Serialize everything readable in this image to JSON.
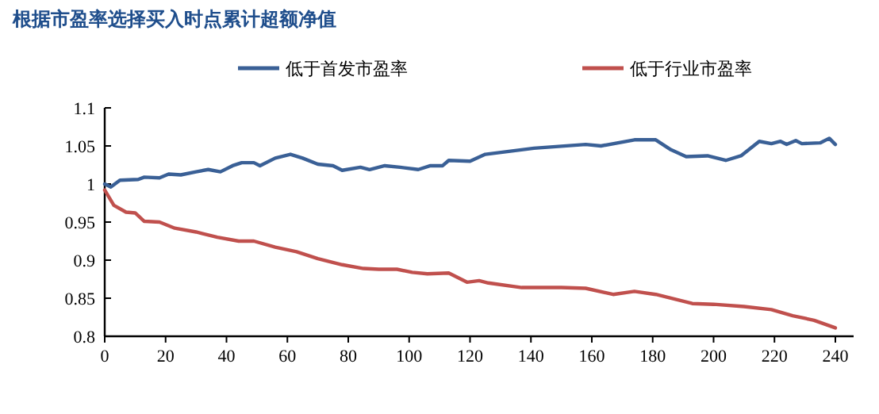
{
  "chart_data": {
    "type": "line",
    "title": "根据市盈率选择买入时点累计超额净值",
    "legend": "top",
    "grid": false,
    "line_style": "solid",
    "xlim": [
      0,
      246
    ],
    "xticks": [
      0,
      20,
      40,
      60,
      80,
      100,
      120,
      140,
      160,
      180,
      200,
      220,
      240
    ],
    "ylim": [
      0.8,
      1.1
    ],
    "yticks": [
      0.8,
      0.85,
      0.9,
      0.95,
      1,
      1.05,
      1.1
    ],
    "series": [
      {
        "name": "低于首发市盈率",
        "color": "#3a6096",
        "x": [
          0,
          2,
          5,
          11,
          13,
          18,
          21,
          25,
          30,
          34,
          38,
          42,
          45,
          49,
          51,
          56,
          61,
          65,
          70,
          75,
          78,
          84,
          87,
          92,
          97,
          103,
          107,
          111,
          113,
          120,
          125,
          141,
          158,
          163,
          174,
          181,
          186,
          191,
          198,
          204,
          209,
          215,
          219,
          222,
          224,
          227,
          229,
          235,
          238,
          240
        ],
        "values": [
          1.0,
          0.996,
          1.005,
          1.006,
          1.009,
          1.008,
          1.013,
          1.012,
          1.016,
          1.019,
          1.016,
          1.024,
          1.028,
          1.028,
          1.024,
          1.034,
          1.039,
          1.034,
          1.026,
          1.024,
          1.018,
          1.022,
          1.019,
          1.024,
          1.022,
          1.019,
          1.024,
          1.024,
          1.031,
          1.03,
          1.039,
          1.047,
          1.052,
          1.05,
          1.058,
          1.058,
          1.045,
          1.036,
          1.037,
          1.031,
          1.037,
          1.056,
          1.053,
          1.056,
          1.052,
          1.057,
          1.053,
          1.054,
          1.06,
          1.052
        ]
      },
      {
        "name": "低于行业市盈率",
        "color": "#c0504d",
        "x": [
          0,
          3,
          7,
          10,
          13,
          18,
          23,
          30,
          37,
          44,
          49,
          56,
          63,
          70,
          78,
          85,
          90,
          96,
          101,
          106,
          113,
          119,
          123,
          126,
          137,
          150,
          158,
          167,
          174,
          181,
          193,
          200,
          210,
          219,
          226,
          233,
          240
        ],
        "values": [
          0.992,
          0.972,
          0.963,
          0.962,
          0.951,
          0.95,
          0.942,
          0.937,
          0.93,
          0.925,
          0.925,
          0.917,
          0.911,
          0.902,
          0.894,
          0.889,
          0.888,
          0.888,
          0.884,
          0.882,
          0.883,
          0.871,
          0.873,
          0.87,
          0.864,
          0.864,
          0.863,
          0.855,
          0.859,
          0.855,
          0.843,
          0.842,
          0.839,
          0.835,
          0.827,
          0.821,
          0.811
        ]
      }
    ]
  }
}
